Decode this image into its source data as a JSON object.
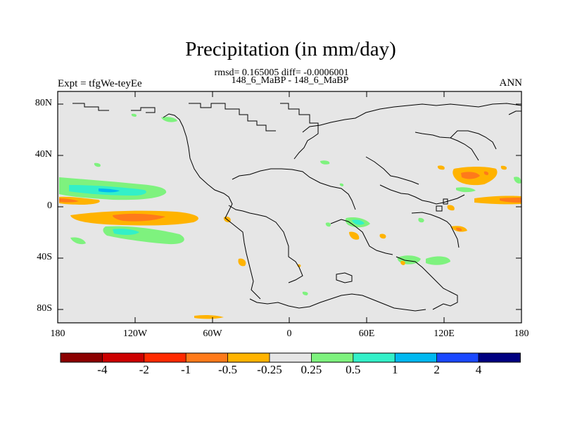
{
  "title": "Precipitation (in mm/day)",
  "stats_line": "rmsd= 0.165005 diff= -0.0006001",
  "case_line": "148_6_MaBP - 148_6_MaBP",
  "left_label": "Expt = tfgWe-teyEe",
  "right_label": "ANN",
  "latitude_ticks": [
    "80N",
    "40N",
    "0",
    "40S",
    "80S"
  ],
  "longitude_ticks": [
    "180",
    "120W",
    "60W",
    "0",
    "60E",
    "120E",
    "180"
  ],
  "colorbar": {
    "labels": [
      "-4",
      "-2",
      "-1",
      "-0.5",
      "-0.25",
      "0.25",
      "0.5",
      "1",
      "2",
      "4"
    ],
    "colors": [
      "#8b0000",
      "#cc0000",
      "#ff2a00",
      "#ff7a1a",
      "#ffb300",
      "#e6e6e6",
      "#7ef27e",
      "#33f0c8",
      "#00b8f0",
      "#1a48ff",
      "#000080"
    ]
  },
  "map_colors": {
    "neutral": "#e6e6e6",
    "light_orange": "#ffb300",
    "orange": "#ff7a1a",
    "light_green": "#7ef27e",
    "teal": "#33f0c8",
    "blue": "#00b8f0"
  }
}
